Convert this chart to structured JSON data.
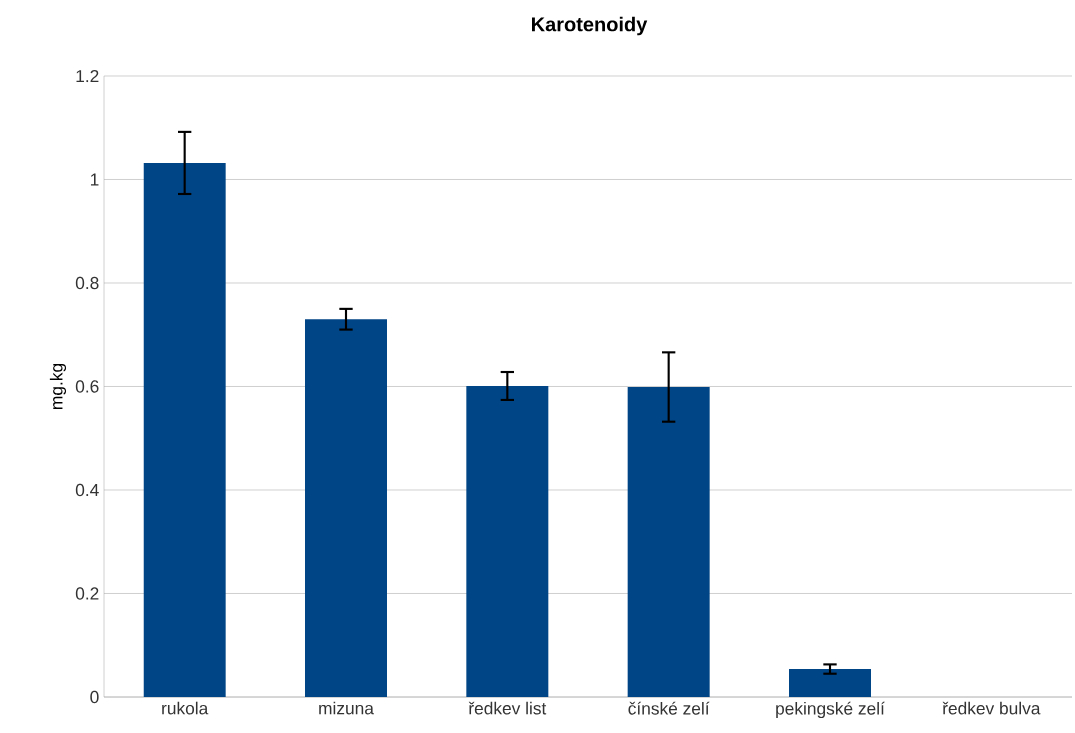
{
  "chart_data": {
    "type": "bar",
    "title": "Karotenoidy",
    "ylabel": "mg.kg",
    "categories": [
      "rukola",
      "mizuna",
      "ředkev list",
      "čínské zelí",
      "pekingské zelí",
      "ředkev bulva"
    ],
    "values": [
      1.032,
      0.73,
      0.601,
      0.599,
      0.054,
      0
    ],
    "errors": [
      0.06,
      0.02,
      0.027,
      0.067,
      0.009,
      null
    ],
    "color": "#004586",
    "ylim": [
      0,
      1.2
    ],
    "yticks": [
      0,
      0.2,
      0.4,
      0.6,
      0.8,
      1,
      1.2
    ],
    "grid": "y"
  }
}
